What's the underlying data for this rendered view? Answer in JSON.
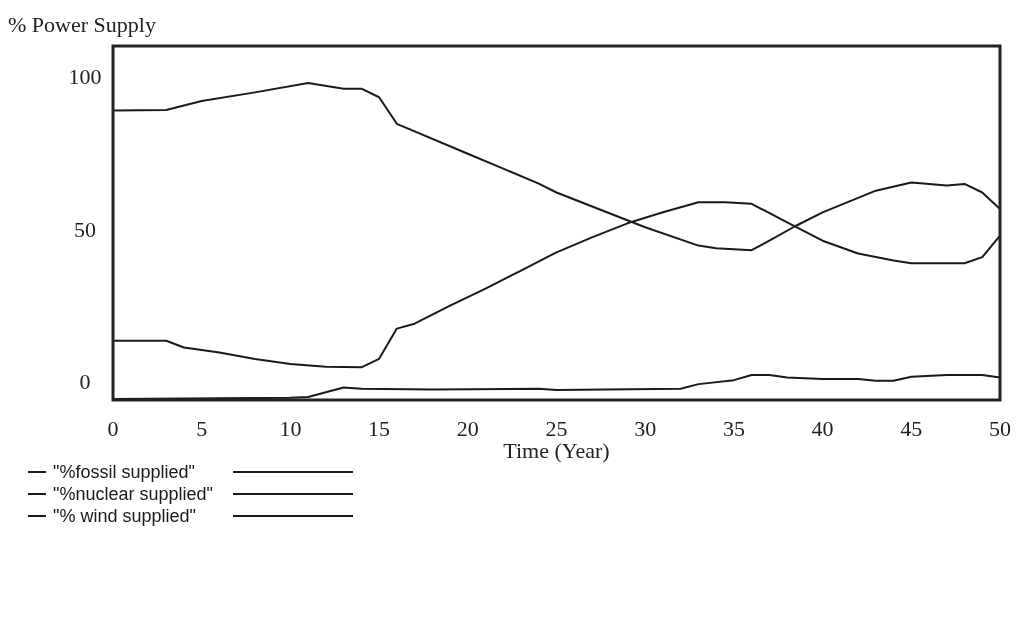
{
  "chart_data": {
    "type": "line",
    "ylabel": "% Power Supply",
    "xlabel": "Time (Year)",
    "xlim": [
      0,
      50
    ],
    "xticks": [
      0,
      5,
      10,
      15,
      20,
      25,
      30,
      35,
      40,
      45,
      50
    ],
    "ylim": [
      -6,
      110
    ],
    "yticks": [
      0,
      50,
      100
    ],
    "grid": false,
    "legend": "bottom",
    "marker": "none",
    "line_style": "solid",
    "series": [
      {
        "name": "\"%fossil supplied\"",
        "color": "#1a1a1a",
        "x": [
          0,
          3,
          5,
          8,
          11,
          13,
          14,
          15,
          16,
          20,
          22,
          24,
          25,
          30,
          33,
          34,
          36,
          37,
          38.5,
          40,
          43,
          45,
          47,
          48,
          49,
          50
        ],
        "values": [
          88.9,
          89,
          92,
          94.8,
          97.9,
          96,
          96,
          93.2,
          84.5,
          74.7,
          69.8,
          64.9,
          62,
          50.6,
          44.6,
          43.7,
          43.1,
          46.2,
          51.1,
          55.5,
          62.6,
          65.3,
          64.3,
          64.8,
          62,
          56.6
        ]
      },
      {
        "name": "\"%nuclear supplied\"",
        "color": "#1a1a1a",
        "x": [
          0,
          3,
          4,
          6,
          8,
          10,
          12,
          14,
          15,
          16,
          17,
          19,
          21,
          23,
          25,
          27,
          29,
          31,
          33,
          34.5,
          36,
          38,
          40,
          42,
          44,
          45,
          48,
          49,
          50
        ],
        "values": [
          13.4,
          13.4,
          11.2,
          9.6,
          7.4,
          5.8,
          4.9,
          4.7,
          7.5,
          17.4,
          19,
          24.9,
          30.5,
          36.4,
          42.4,
          47.3,
          51.9,
          55.5,
          58.8,
          58.8,
          58.3,
          52.2,
          46.2,
          42,
          39.7,
          38.8,
          38.8,
          40.8,
          47.9
        ]
      },
      {
        "name": "\"% wind supplied\"",
        "color": "#1a1a1a",
        "x": [
          0,
          10,
          11,
          13,
          14,
          18,
          24,
          25,
          32,
          33,
          35,
          36,
          37,
          38,
          40,
          42,
          43,
          44,
          45,
          47,
          49,
          50
        ],
        "values": [
          -5.7,
          -5.3,
          -5,
          -1.9,
          -2.3,
          -2.6,
          -2.3,
          -2.7,
          -2.3,
          -0.8,
          0.5,
          2.2,
          2.2,
          1.4,
          0.9,
          0.9,
          0.3,
          0.3,
          1.6,
          2.2,
          2.2,
          1.4
        ]
      }
    ]
  }
}
